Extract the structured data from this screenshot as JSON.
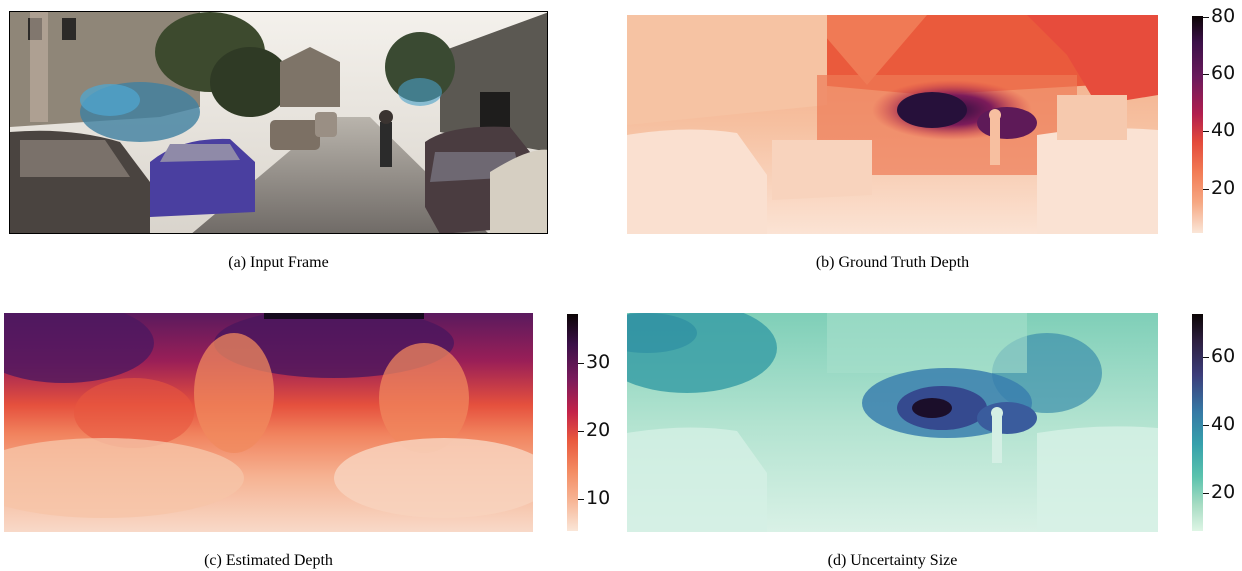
{
  "figure": {
    "panels": [
      {
        "id": "a",
        "caption": "(a) Input Frame"
      },
      {
        "id": "b",
        "caption": "(b) Ground Truth Depth",
        "colorbar": {
          "ticks": [
            "20",
            "40",
            "60",
            "80"
          ],
          "range": [
            5,
            80
          ],
          "colormap": "rocket_r"
        }
      },
      {
        "id": "c",
        "caption": "(c) Estimated Depth",
        "colorbar": {
          "ticks": [
            "10",
            "20",
            "30"
          ],
          "range": [
            5,
            37
          ],
          "colormap": "rocket_r"
        }
      },
      {
        "id": "d",
        "caption": "(d) Uncertainty Size",
        "colorbar": {
          "ticks": [
            "20",
            "40",
            "60"
          ],
          "range": [
            8,
            72
          ],
          "colormap": "mako_r"
        }
      }
    ]
  }
}
